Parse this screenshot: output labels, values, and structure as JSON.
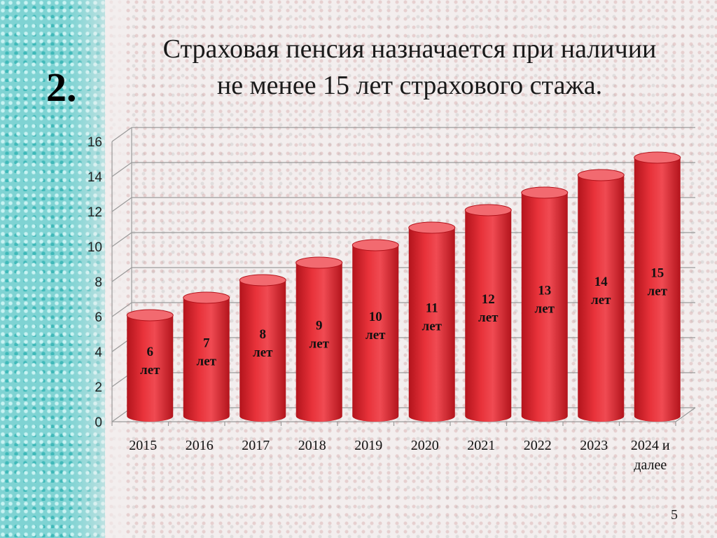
{
  "slide": {
    "number": "2.",
    "title_line1": "Страховая пенсия назначается при наличии",
    "title_line2": "не менее 15 лет страхового стажа.",
    "page_number": "5"
  },
  "colors": {
    "bar": "#e8323a",
    "bar_dark": "#b3141c",
    "bar_top": "#f26a70",
    "grid": "#9a9a9a",
    "side_strip": "#7fd3d3"
  },
  "chart_data": {
    "type": "bar",
    "style": "3d-cylinder",
    "categories": [
      "2015",
      "2016",
      "2017",
      "2018",
      "2019",
      "2020",
      "2021",
      "2022",
      "2023",
      "2024 и далее"
    ],
    "category_lines": [
      [
        "2015"
      ],
      [
        "2016"
      ],
      [
        "2017"
      ],
      [
        "2018"
      ],
      [
        "2019"
      ],
      [
        "2020"
      ],
      [
        "2021"
      ],
      [
        "2022"
      ],
      [
        "2023"
      ],
      [
        "2024 и",
        "далее"
      ]
    ],
    "values": [
      6,
      7,
      8,
      9,
      10,
      11,
      12,
      13,
      14,
      15
    ],
    "data_labels": [
      [
        "6",
        "лет"
      ],
      [
        "7",
        "лет"
      ],
      [
        "8",
        "лет"
      ],
      [
        "9",
        "лет"
      ],
      [
        "10",
        "лет"
      ],
      [
        "11",
        "лет"
      ],
      [
        "12",
        "лет"
      ],
      [
        "13",
        "лет"
      ],
      [
        "14",
        "лет"
      ],
      [
        "15",
        "лет"
      ]
    ],
    "yticks": [
      "0",
      "2",
      "4",
      "6",
      "8",
      "10",
      "12",
      "14",
      "16"
    ],
    "ylim": [
      0,
      16
    ],
    "grid": true,
    "legend": "none"
  }
}
